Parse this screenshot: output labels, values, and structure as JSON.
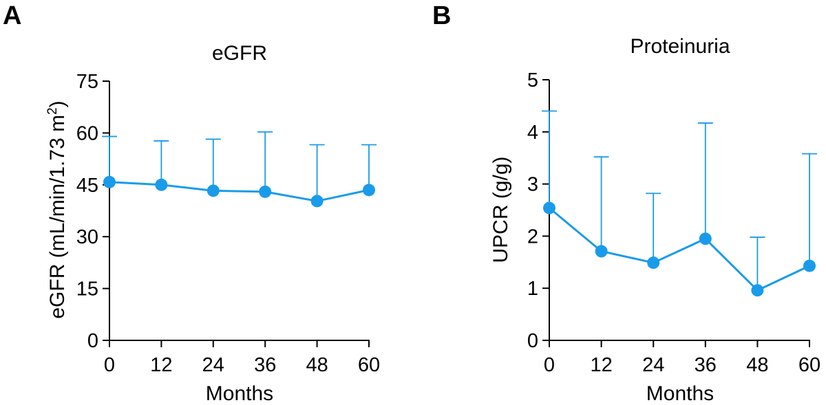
{
  "colors": {
    "series": "#1A9BEA",
    "axis": "#000000",
    "text": "#000000"
  },
  "chart_data": [
    {
      "panel_label": "A",
      "type": "line",
      "title": "eGFR",
      "xlabel": "Months",
      "ylabel_main": "eGFR (mL/min/1.73 m",
      "ylabel_sup": "2",
      "ylabel_end": ")",
      "x": [
        0,
        12,
        24,
        36,
        48,
        60
      ],
      "x_tick_labels": [
        "0",
        "12",
        "24",
        "36",
        "48",
        "60"
      ],
      "xlim": [
        0,
        60
      ],
      "ylim": [
        0,
        75
      ],
      "y_ticks": [
        0,
        15,
        30,
        45,
        60,
        75
      ],
      "y_tick_labels": [
        "0",
        "15",
        "30",
        "45",
        "60",
        "75"
      ],
      "grid": false,
      "series": [
        {
          "name": "eGFR",
          "values": [
            45.8,
            45.0,
            43.3,
            43.0,
            40.3,
            43.5
          ],
          "error_upper": [
            59.0,
            57.7,
            58.2,
            60.3,
            56.6,
            56.6
          ]
        }
      ]
    },
    {
      "panel_label": "B",
      "type": "line",
      "title": "Proteinuria",
      "xlabel": "Months",
      "ylabel_main": "UPCR (g/g)",
      "ylabel_sup": "",
      "ylabel_end": "",
      "x": [
        0,
        12,
        24,
        36,
        48,
        60
      ],
      "x_tick_labels": [
        "0",
        "12",
        "24",
        "36",
        "48",
        "60"
      ],
      "xlim": [
        0,
        60
      ],
      "ylim": [
        0,
        5
      ],
      "y_ticks": [
        0,
        1,
        2,
        3,
        4,
        5
      ],
      "y_tick_labels": [
        "0",
        "1",
        "2",
        "3",
        "4",
        "5"
      ],
      "grid": false,
      "series": [
        {
          "name": "UPCR",
          "values": [
            2.54,
            1.71,
            1.49,
            1.95,
            0.96,
            1.43
          ],
          "error_upper": [
            4.4,
            3.52,
            2.82,
            4.17,
            1.98,
            3.58
          ]
        }
      ]
    }
  ]
}
